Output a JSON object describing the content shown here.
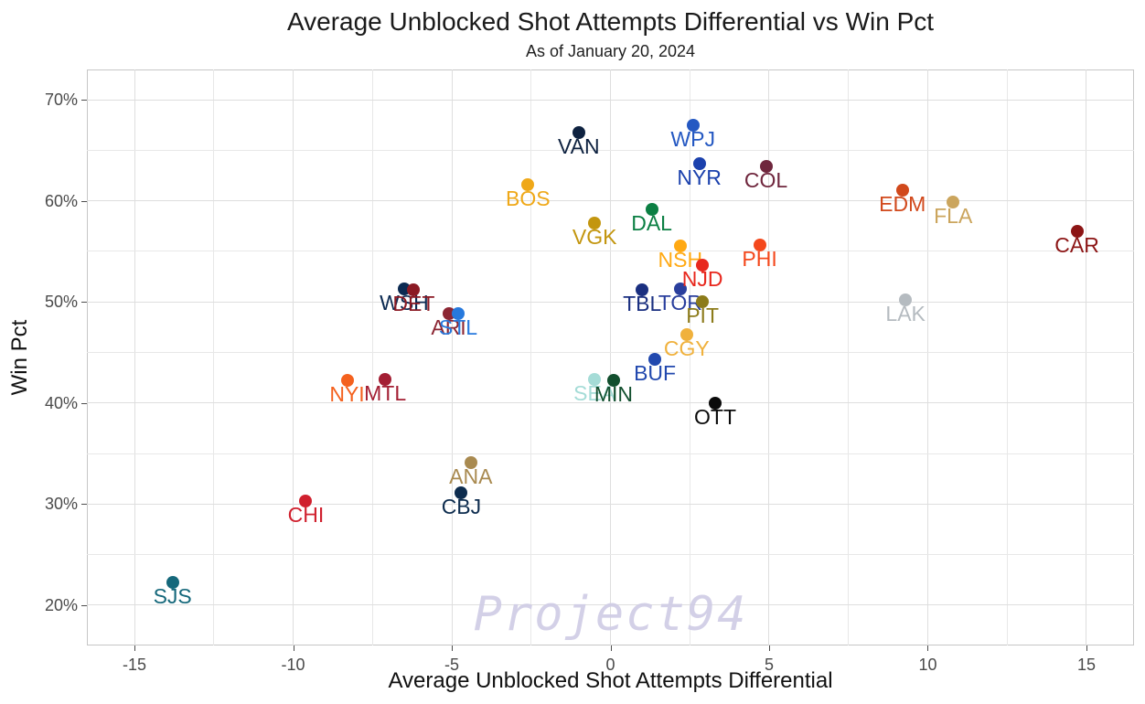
{
  "chart_data": {
    "type": "scatter",
    "title": "Average Unblocked Shot Attempts Differential vs Win Pct",
    "subtitle": "As of January 20, 2024",
    "xlabel": "Average Unblocked Shot Attempts Differential",
    "ylabel": "Win Pct",
    "watermark": "Project94",
    "legend_position": "none",
    "grid": "on",
    "x_axis": {
      "min": -16.5,
      "max": 16.5,
      "minor_step": 2.5,
      "ticks": [
        {
          "v": -15,
          "label": "-15"
        },
        {
          "v": -10,
          "label": "-10"
        },
        {
          "v": -5,
          "label": "-5"
        },
        {
          "v": 0,
          "label": "0"
        },
        {
          "v": 5,
          "label": "5"
        },
        {
          "v": 10,
          "label": "10"
        },
        {
          "v": 15,
          "label": "15"
        }
      ]
    },
    "y_axis": {
      "min": 16,
      "max": 73,
      "minor_step": 5,
      "ticks": [
        {
          "v": 20,
          "label": "20%"
        },
        {
          "v": 30,
          "label": "30%"
        },
        {
          "v": 40,
          "label": "40%"
        },
        {
          "v": 50,
          "label": "50%"
        },
        {
          "v": 60,
          "label": "60%"
        },
        {
          "v": 70,
          "label": "70%"
        }
      ]
    },
    "points": [
      {
        "team": "SJS",
        "x": -13.8,
        "y": 22.2,
        "color": "#15687B"
      },
      {
        "team": "CHI",
        "x": -9.6,
        "y": 30.3,
        "color": "#D0202E"
      },
      {
        "team": "NYI",
        "x": -8.3,
        "y": 42.2,
        "color": "#F4611E"
      },
      {
        "team": "MTL",
        "x": -7.1,
        "y": 42.3,
        "color": "#A31E33"
      },
      {
        "team": "WSH",
        "x": -6.5,
        "y": 51.3,
        "color": "#0B2A52"
      },
      {
        "team": "DET",
        "x": -6.2,
        "y": 51.2,
        "color": "#8B1A24"
      },
      {
        "team": "ARI",
        "x": -5.1,
        "y": 48.8,
        "color": "#8C2633"
      },
      {
        "team": "STL",
        "x": -4.8,
        "y": 48.8,
        "color": "#2779DD"
      },
      {
        "team": "CBJ",
        "x": -4.7,
        "y": 31.1,
        "color": "#0D2C4E"
      },
      {
        "team": "ANA",
        "x": -4.4,
        "y": 34.1,
        "color": "#A98A50"
      },
      {
        "team": "BOS",
        "x": -2.6,
        "y": 61.6,
        "color": "#EFA818"
      },
      {
        "team": "VAN",
        "x": -1.0,
        "y": 66.8,
        "color": "#0E2240"
      },
      {
        "team": "VGK",
        "x": -0.5,
        "y": 57.8,
        "color": "#C3960F"
      },
      {
        "team": "SEA",
        "x": -0.5,
        "y": 42.3,
        "color": "#A5DCD7"
      },
      {
        "team": "MIN",
        "x": 0.1,
        "y": 42.2,
        "color": "#124F2E"
      },
      {
        "team": "TBL",
        "x": 1.0,
        "y": 51.2,
        "color": "#1A2F80"
      },
      {
        "team": "DAL",
        "x": 1.3,
        "y": 59.2,
        "color": "#0B7F43"
      },
      {
        "team": "BUF",
        "x": 1.4,
        "y": 44.3,
        "color": "#2148AE"
      },
      {
        "team": "NSH",
        "x": 2.2,
        "y": 55.5,
        "color": "#FFA913"
      },
      {
        "team": "TOR",
        "x": 2.2,
        "y": 51.3,
        "color": "#2A3F9D"
      },
      {
        "team": "CGY",
        "x": 2.4,
        "y": 46.8,
        "color": "#F0B13C"
      },
      {
        "team": "WPJ",
        "x": 2.6,
        "y": 67.5,
        "color": "#2458C2"
      },
      {
        "team": "NYR",
        "x": 2.8,
        "y": 63.7,
        "color": "#1B41AD"
      },
      {
        "team": "NJD",
        "x": 2.9,
        "y": 53.6,
        "color": "#E8281E"
      },
      {
        "team": "PIT",
        "x": 2.9,
        "y": 50.0,
        "color": "#8C7B1A"
      },
      {
        "team": "OTT",
        "x": 3.3,
        "y": 40.0,
        "color": "#0B0B0B"
      },
      {
        "team": "PHI",
        "x": 4.7,
        "y": 55.6,
        "color": "#F4481C"
      },
      {
        "team": "COL",
        "x": 4.9,
        "y": 63.4,
        "color": "#6F263D"
      },
      {
        "team": "EDM",
        "x": 9.2,
        "y": 61.1,
        "color": "#D1491C"
      },
      {
        "team": "LAK",
        "x": 9.3,
        "y": 50.2,
        "color": "#B5BBC0"
      },
      {
        "team": "FLA",
        "x": 10.8,
        "y": 59.9,
        "color": "#CBA55D"
      },
      {
        "team": "CAR",
        "x": 14.7,
        "y": 57.0,
        "color": "#8C1515"
      }
    ]
  }
}
